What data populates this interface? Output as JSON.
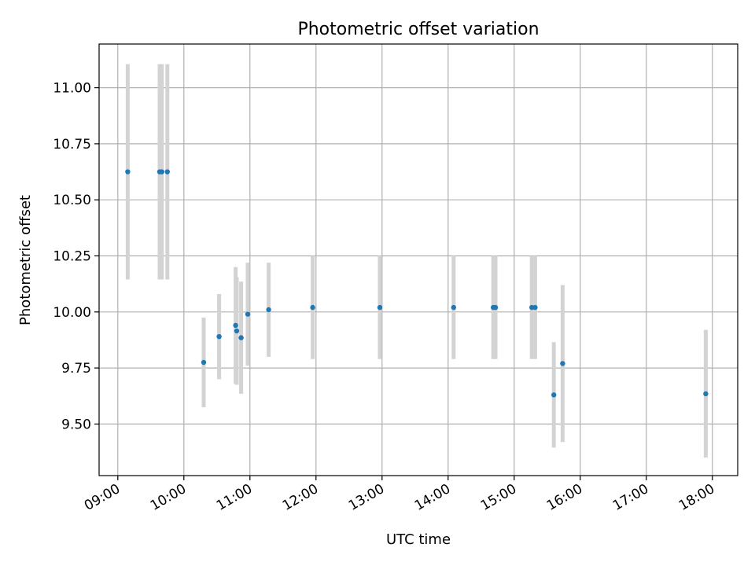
{
  "chart_data": {
    "type": "scatter",
    "title": "Photometric offset variation",
    "xlabel": "UTC time",
    "ylabel": "Photometric offset",
    "x_is_time": true,
    "xlim": [
      "08:43",
      "18:23"
    ],
    "ylim": [
      9.27,
      11.195
    ],
    "grid": true,
    "x_ticks": [
      "09:00",
      "10:00",
      "11:00",
      "12:00",
      "13:00",
      "14:00",
      "15:00",
      "16:00",
      "17:00",
      "18:00"
    ],
    "y_ticks": [
      9.5,
      9.75,
      10.0,
      10.25,
      10.5,
      10.75,
      11.0
    ],
    "y_tick_labels": [
      "9.50",
      "9.75",
      "10.00",
      "10.25",
      "10.50",
      "10.75",
      "11.00"
    ],
    "point_color": "#1f77b4",
    "errorbar_color": "#d3d3d3",
    "points": [
      {
        "x": "09:09",
        "y": 10.625,
        "err": 0.48
      },
      {
        "x": "09:38",
        "y": 10.625,
        "err": 0.48
      },
      {
        "x": "09:40",
        "y": 10.625,
        "err": 0.48
      },
      {
        "x": "09:45",
        "y": 10.625,
        "err": 0.48
      },
      {
        "x": "10:18",
        "y": 9.775,
        "err": 0.2
      },
      {
        "x": "10:32",
        "y": 9.89,
        "err": 0.19
      },
      {
        "x": "10:47",
        "y": 9.94,
        "err": 0.26
      },
      {
        "x": "10:48",
        "y": 9.915,
        "err": 0.24
      },
      {
        "x": "10:52",
        "y": 9.885,
        "err": 0.25
      },
      {
        "x": "10:58",
        "y": 9.99,
        "err": 0.23
      },
      {
        "x": "11:17",
        "y": 10.01,
        "err": 0.21
      },
      {
        "x": "11:57",
        "y": 10.02,
        "err": 0.23
      },
      {
        "x": "12:58",
        "y": 10.02,
        "err": 0.23
      },
      {
        "x": "14:05",
        "y": 10.02,
        "err": 0.23
      },
      {
        "x": "14:41",
        "y": 10.02,
        "err": 0.23
      },
      {
        "x": "14:43",
        "y": 10.02,
        "err": 0.23
      },
      {
        "x": "15:16",
        "y": 10.02,
        "err": 0.23
      },
      {
        "x": "15:19",
        "y": 10.02,
        "err": 0.23
      },
      {
        "x": "15:36",
        "y": 9.63,
        "err": 0.235
      },
      {
        "x": "15:44",
        "y": 9.77,
        "err": 0.35
      },
      {
        "x": "17:54",
        "y": 9.635,
        "err": 0.285
      }
    ]
  }
}
